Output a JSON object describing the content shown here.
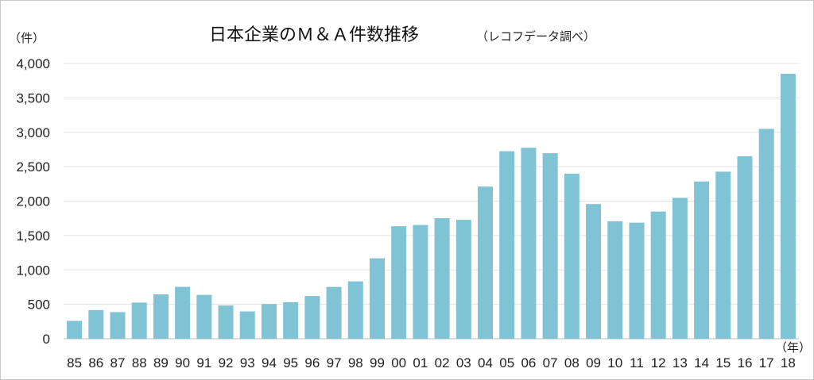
{
  "chart_data": {
    "type": "bar",
    "title": "日本企業のＭ＆Ａ件数推移",
    "subtitle": "（レコフデータ調べ）",
    "ylabel": "（件）",
    "xlabel": "（年）",
    "ylim": [
      0,
      4000
    ],
    "yticks": [
      "0",
      "500",
      "1,000",
      "1,500",
      "2,000",
      "2,500",
      "3,000",
      "3,500",
      "4,000"
    ],
    "ytick_values": [
      0,
      500,
      1000,
      1500,
      2000,
      2500,
      3000,
      3500,
      4000
    ],
    "grid": true,
    "legend": "none",
    "bar_color": "#7fc3d4",
    "categories": [
      "85",
      "86",
      "87",
      "88",
      "89",
      "90",
      "91",
      "92",
      "93",
      "94",
      "95",
      "96",
      "97",
      "98",
      "99",
      "00",
      "01",
      "02",
      "03",
      "04",
      "05",
      "06",
      "07",
      "08",
      "09",
      "10",
      "11",
      "12",
      "13",
      "14",
      "15",
      "16",
      "17",
      "18"
    ],
    "values": [
      260,
      417,
      387,
      526,
      645,
      754,
      638,
      483,
      397,
      505,
      531,
      621,
      753,
      834,
      1169,
      1635,
      1653,
      1752,
      1728,
      2211,
      2725,
      2775,
      2696,
      2399,
      1957,
      1707,
      1687,
      1848,
      2048,
      2285,
      2428,
      2652,
      3050,
      3850
    ]
  }
}
